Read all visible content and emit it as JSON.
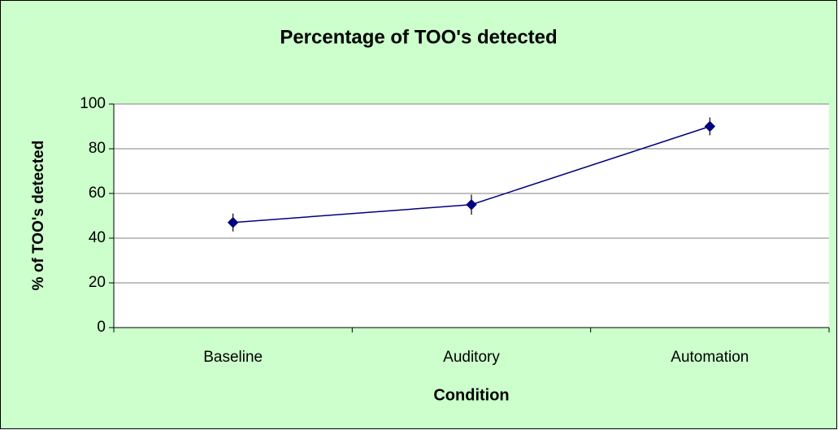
{
  "chart_data": {
    "type": "line",
    "title": "Percentage of TOO's detected",
    "x_label": "Condition",
    "y_label": "% of TOO's detected",
    "categories": [
      "Baseline",
      "Auditory",
      "Automation"
    ],
    "values": [
      47,
      55,
      90
    ],
    "errors": [
      4,
      4.5,
      4
    ],
    "color": "#000080",
    "ylim": [
      0,
      100
    ],
    "yticks": [
      0,
      20,
      40,
      60,
      80,
      100
    ],
    "grid": true
  }
}
